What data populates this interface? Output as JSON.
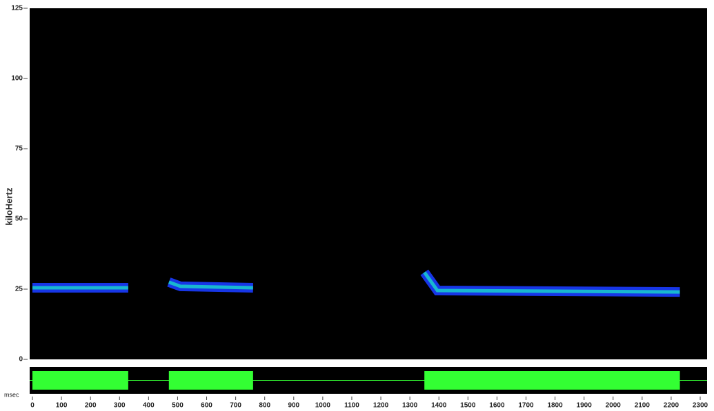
{
  "chart_data": {
    "type": "spectrogram",
    "ylabel": "kiloHertz",
    "xlabel": "msec",
    "xlim": [
      0,
      2300
    ],
    "xticks": [
      0,
      100,
      200,
      300,
      400,
      500,
      600,
      700,
      800,
      900,
      1000,
      1100,
      1200,
      1300,
      1400,
      1500,
      1600,
      1700,
      1800,
      1900,
      2000,
      2100,
      2200,
      2300
    ],
    "ylim": [
      0,
      125
    ],
    "yticks": [
      0,
      25,
      50,
      75,
      100,
      125
    ],
    "background": "#000000",
    "band_color": "#1a3cff",
    "core_color": "#19e3c8",
    "waveform_color": "#33ff33",
    "calls": [
      {
        "x": [
          0,
          330
        ],
        "y": [
          25.5,
          25.5
        ]
      },
      {
        "x": [
          470,
          510,
          760
        ],
        "y": [
          27.5,
          26,
          25.5
        ]
      },
      {
        "x": [
          1350,
          1395,
          2230
        ],
        "y": [
          31,
          24.5,
          24
        ]
      }
    ]
  }
}
